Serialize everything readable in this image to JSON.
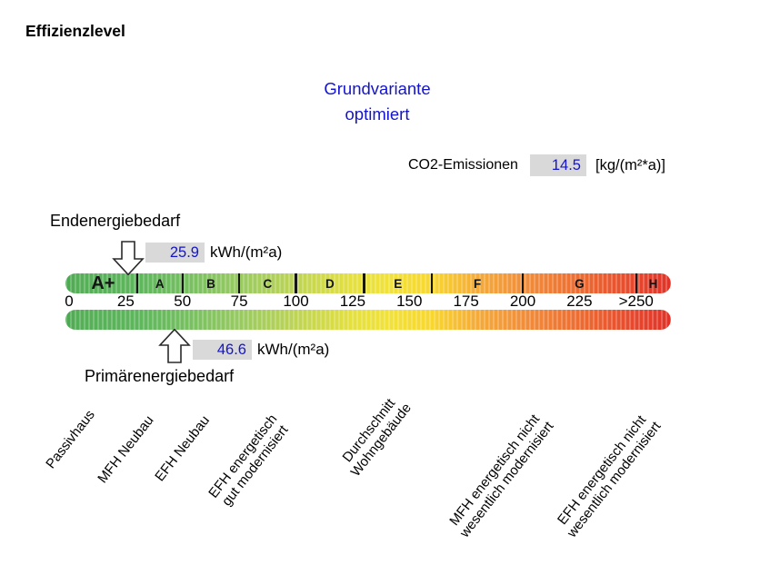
{
  "title": "Effizienzlevel",
  "chart_data": {
    "type": "bar",
    "subtype": "energy-efficiency-scale",
    "title": "Effizienzlevel",
    "scenario_lines": [
      "Grundvariante",
      "optimiert"
    ],
    "scenario": "Grundvariante optimiert",
    "axis_unit": "kWh/(m²a)",
    "xlim": [
      0,
      265
    ],
    "axis_ticks": [
      {
        "value": 0,
        "label": "0"
      },
      {
        "value": 25,
        "label": "25"
      },
      {
        "value": 50,
        "label": "50"
      },
      {
        "value": 75,
        "label": "75"
      },
      {
        "value": 100,
        "label": "100"
      },
      {
        "value": 125,
        "label": "125"
      },
      {
        "value": 150,
        "label": "150"
      },
      {
        "value": 175,
        "label": "175"
      },
      {
        "value": 200,
        "label": "200"
      },
      {
        "value": 225,
        "label": "225"
      },
      {
        "value": 250,
        "label": ">250"
      }
    ],
    "classes": [
      {
        "label": "A+",
        "from": 0,
        "to": 30
      },
      {
        "label": "A",
        "from": 30,
        "to": 50
      },
      {
        "label": "B",
        "from": 50,
        "to": 75
      },
      {
        "label": "C",
        "from": 75,
        "to": 100
      },
      {
        "label": "D",
        "from": 100,
        "to": 130
      },
      {
        "label": "E",
        "from": 130,
        "to": 160
      },
      {
        "label": "F",
        "from": 160,
        "to": 200
      },
      {
        "label": "G",
        "from": 200,
        "to": 250
      },
      {
        "label": "H",
        "from": 250,
        "to": 265
      }
    ],
    "markers": [
      {
        "name": "Endenergiebedarf",
        "value": 25.9,
        "display": "25.9",
        "unit": "kWh/(m²a)"
      },
      {
        "name": "Primärenergiebedarf",
        "value": 46.6,
        "display": "46.6",
        "unit": "kWh/(m²a)"
      }
    ],
    "co2_emissions": {
      "label": "CO2-Emissionen",
      "value": 14.5,
      "display": "14.5",
      "unit": "[kg/(m²*a)]"
    },
    "benchmarks": [
      {
        "label": "Passivhaus",
        "lines": [
          "Passivhaus"
        ]
      },
      {
        "label": "MFH Neubau",
        "lines": [
          "MFH Neubau"
        ]
      },
      {
        "label": "EFH Neubau",
        "lines": [
          "EFH Neubau"
        ]
      },
      {
        "label": "EFH energetisch gut modernisiert",
        "lines": [
          "EFH energetisch",
          "gut modernisiert"
        ]
      },
      {
        "label": "Durchschnitt Wohngebäude",
        "lines": [
          "Durchschnitt",
          "Wohngebäude"
        ]
      },
      {
        "label": "MFH energetisch nicht wesentlich modernisiert",
        "lines": [
          "MFH energetisch nicht",
          "wesentlich modernisiert"
        ]
      },
      {
        "label": "EFH energetisch nicht wesentlich modernisiert",
        "lines": [
          "EFH energetisch nicht",
          "wesentlich modernisiert"
        ]
      }
    ],
    "gradient_colors": [
      "#4ba750",
      "#5eb65c",
      "#74bf60",
      "#97ca62",
      "#bed455",
      "#e5e03e",
      "#f8d72f",
      "#f5ab39",
      "#f18f3b",
      "#ed6c31",
      "#e5462d",
      "#e03328"
    ],
    "legend": "none",
    "grid": false
  },
  "colors": {
    "accent_blue": "#1414cc",
    "value_box_bg": "#d9d9d9",
    "bar_separator": "#161616"
  }
}
